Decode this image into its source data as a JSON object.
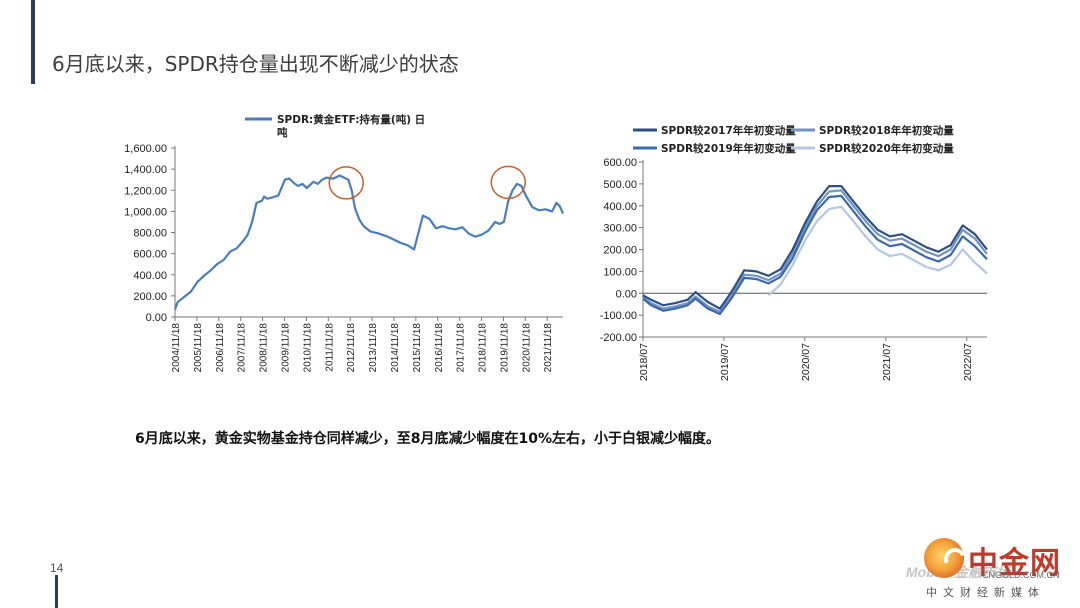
{
  "page": {
    "title": "6月底以来，SPDR持仓量出现不断减少的状态",
    "caption": "6月底以来，黄金实物基金持仓同样减少，至8月底减少幅度在10%左右，小于白银减少幅度。",
    "page_number": "14"
  },
  "logo": {
    "name": "中金网",
    "url": "CNGOLD.COM.CN",
    "subtitle": "中文财经新媒体",
    "watermark": "Mobile 金融市场"
  },
  "colors": {
    "series1": "#4a7ebb",
    "s2017": "#2e4f86",
    "s2018": "#6f95c8",
    "s2019": "#3e68ac",
    "s2020": "#b4c6e3",
    "highlight": "#c4622d",
    "axis": "#777777"
  },
  "chart_data": [
    {
      "type": "line",
      "legend": [
        "SPDR:黄金ETF:持有量(吨) 日",
        "吨"
      ],
      "ylim": [
        0,
        1600
      ],
      "yticks": [
        0,
        200,
        400,
        600,
        800,
        1000,
        1200,
        1400,
        1600
      ],
      "ytick_labels": [
        "0.00",
        "200.00",
        "400.00",
        "600.00",
        "800.00",
        "1,000.00",
        "1,200.00",
        "1,400.00",
        "1,600.00"
      ],
      "xlim": [
        2004.88,
        2022.6
      ],
      "xtick_labels": [
        "2004/11/18",
        "2005/11/18",
        "2006/11/18",
        "2007/11/18",
        "2008/11/18",
        "2009/11/18",
        "2010/11/18",
        "2011/11/18",
        "2012/11/18",
        "2013/11/18",
        "2014/11/18",
        "2015/11/18",
        "2016/11/18",
        "2017/11/18",
        "2018/11/18",
        "2019/11/18",
        "2020/11/18",
        "2021/11/18"
      ],
      "series": [
        {
          "x": [
            2004.88,
            2005.0,
            2005.3,
            2005.6,
            2005.9,
            2006.2,
            2006.5,
            2006.8,
            2007.1,
            2007.4,
            2007.7,
            2008.0,
            2008.2,
            2008.4,
            2008.6,
            2008.85,
            2008.95,
            2009.1,
            2009.3,
            2009.6,
            2009.9,
            2010.1,
            2010.3,
            2010.5,
            2010.7,
            2010.9,
            2011.2,
            2011.4,
            2011.6,
            2011.8,
            2012.1,
            2012.4,
            2012.6,
            2012.8,
            2012.95,
            2013.1,
            2013.3,
            2013.5,
            2013.8,
            2014.2,
            2014.6,
            2014.9,
            2015.2,
            2015.5,
            2015.8,
            2016.0,
            2016.2,
            2016.5,
            2016.8,
            2017.1,
            2017.4,
            2017.7,
            2018.0,
            2018.3,
            2018.6,
            2018.9,
            2019.2,
            2019.5,
            2019.7,
            2019.9,
            2020.1,
            2020.3,
            2020.5,
            2020.7,
            2020.9,
            2021.2,
            2021.5,
            2021.8,
            2022.1,
            2022.3,
            2022.45,
            2022.6
          ],
          "y": [
            70,
            140,
            190,
            240,
            330,
            390,
            440,
            500,
            540,
            620,
            650,
            720,
            780,
            900,
            1080,
            1100,
            1140,
            1120,
            1130,
            1150,
            1300,
            1310,
            1270,
            1240,
            1260,
            1220,
            1280,
            1260,
            1300,
            1320,
            1310,
            1340,
            1320,
            1300,
            1200,
            1030,
            920,
            860,
            810,
            790,
            760,
            730,
            700,
            680,
            640,
            800,
            960,
            930,
            840,
            860,
            840,
            830,
            850,
            790,
            760,
            780,
            820,
            900,
            880,
            900,
            1100,
            1200,
            1260,
            1240,
            1150,
            1040,
            1010,
            1020,
            1000,
            1080,
            1050,
            980
          ]
        }
      ],
      "annotations": [
        {
          "type": "circle",
          "x": 2012.7,
          "y": 1270
        },
        {
          "type": "circle",
          "x": 2020.1,
          "y": 1275
        }
      ]
    },
    {
      "type": "line",
      "ylim": [
        -200,
        600
      ],
      "yticks": [
        -200,
        -100,
        0,
        100,
        200,
        300,
        400,
        500,
        600
      ],
      "ytick_labels": [
        "-200.00",
        "-100.00",
        "0.00",
        "100.00",
        "200.00",
        "300.00",
        "400.00",
        "500.00",
        "600.00"
      ],
      "xlim": [
        2018.5,
        2022.75
      ],
      "xtick_labels": [
        "2018/07",
        "2019/07",
        "2020/07",
        "2021/07",
        "2022/07"
      ],
      "x": [
        2018.5,
        2018.6,
        2018.75,
        2018.9,
        2019.05,
        2019.15,
        2019.3,
        2019.45,
        2019.6,
        2019.75,
        2019.9,
        2020.05,
        2020.2,
        2020.35,
        2020.5,
        2020.65,
        2020.8,
        2020.95,
        2021.1,
        2021.25,
        2021.4,
        2021.55,
        2021.7,
        2021.85,
        2022.0,
        2022.15,
        2022.3,
        2022.45,
        2022.6,
        2022.75
      ],
      "series": [
        {
          "name": "SPDR较2017年年初变动量",
          "values": [
            -10,
            -30,
            -55,
            -45,
            -30,
            5,
            -40,
            -70,
            10,
            105,
            100,
            80,
            110,
            200,
            320,
            420,
            490,
            490,
            420,
            350,
            290,
            260,
            270,
            240,
            210,
            190,
            220,
            310,
            270,
            200
          ]
        },
        {
          "name": "SPDR较2018年年初变动量",
          "values": [
            -20,
            -45,
            -70,
            -60,
            -45,
            -15,
            -60,
            -85,
            -10,
            85,
            80,
            60,
            90,
            180,
            300,
            400,
            465,
            470,
            400,
            330,
            270,
            240,
            250,
            220,
            190,
            170,
            200,
            290,
            250,
            180
          ]
        },
        {
          "name": "SPDR较2019年年初变动量",
          "values": [
            -25,
            -55,
            -80,
            -70,
            -55,
            -25,
            -70,
            -95,
            -20,
            70,
            65,
            45,
            75,
            160,
            280,
            380,
            440,
            445,
            375,
            305,
            245,
            215,
            225,
            195,
            165,
            145,
            175,
            260,
            215,
            155
          ]
        },
        {
          "name": "SPDR较2020年年初变动量",
          "values": [
            null,
            null,
            null,
            null,
            null,
            null,
            null,
            null,
            null,
            null,
            null,
            -10,
            40,
            130,
            240,
            330,
            385,
            395,
            330,
            260,
            200,
            170,
            180,
            150,
            120,
            105,
            130,
            200,
            140,
            90
          ]
        }
      ]
    }
  ]
}
